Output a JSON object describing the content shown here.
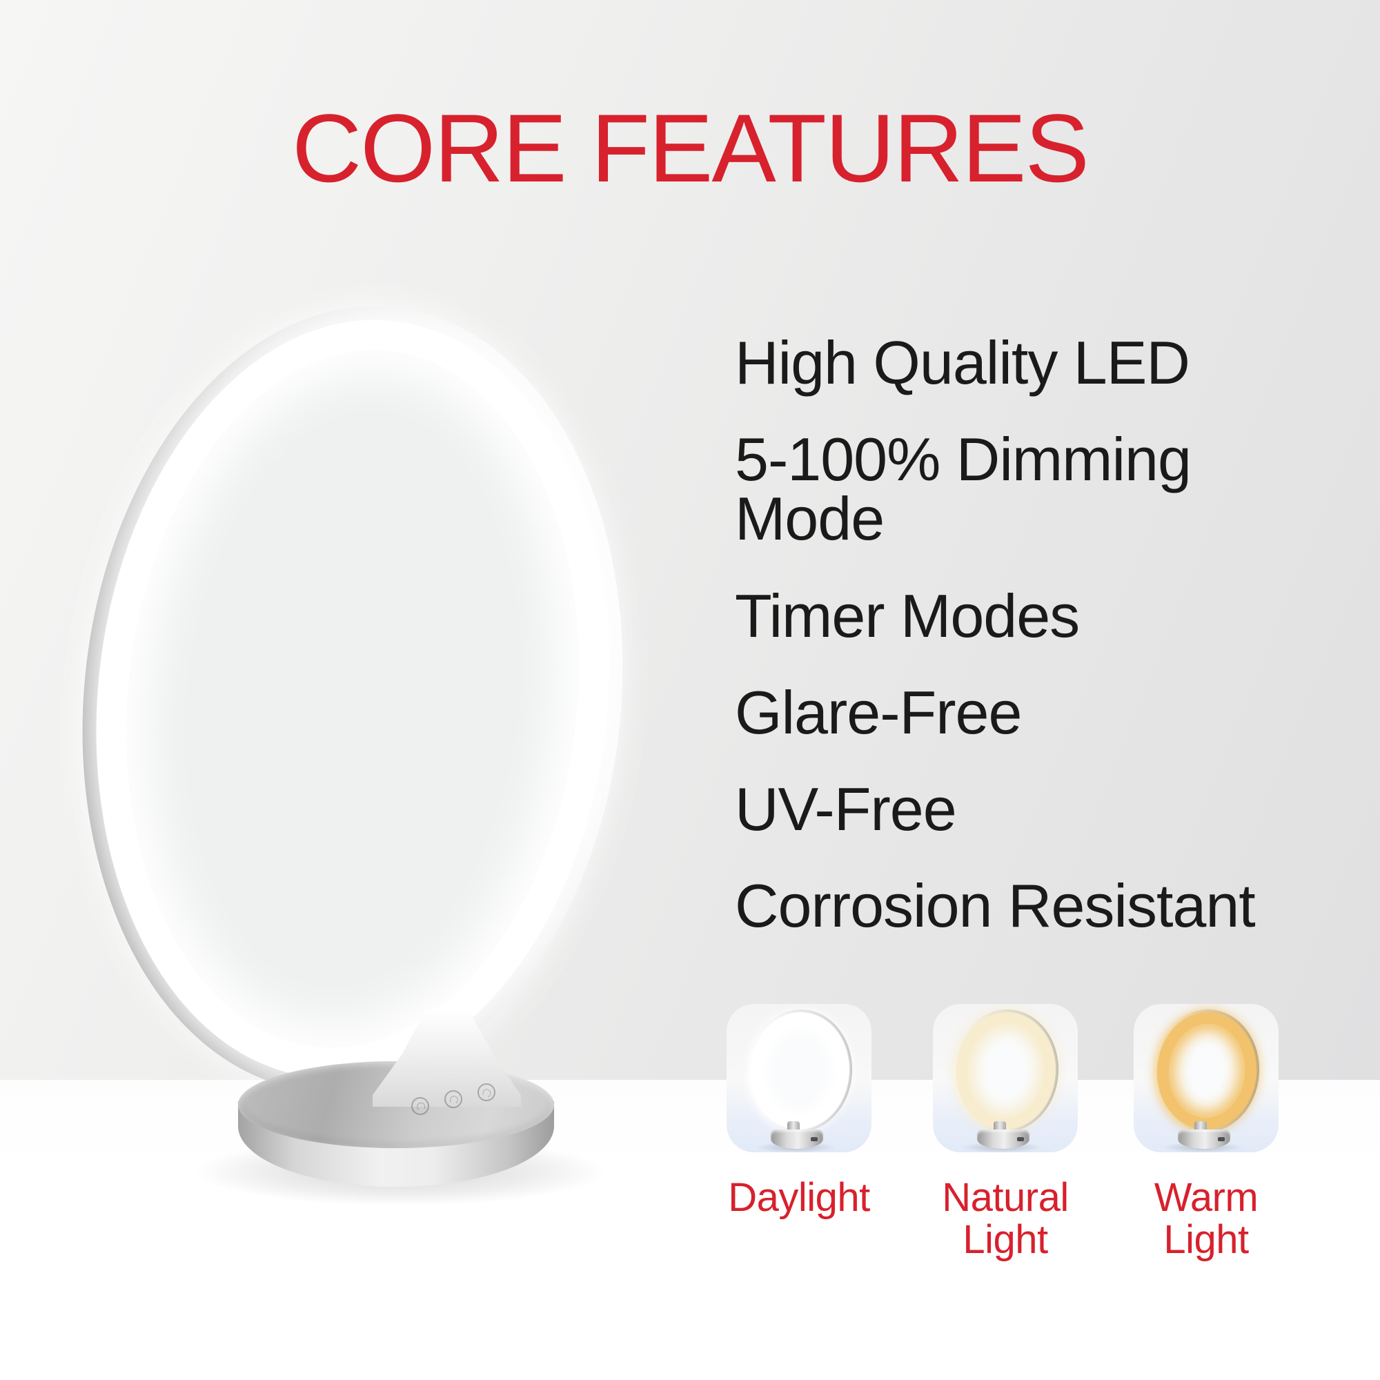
{
  "page": {
    "title": "CORE FEATURES"
  },
  "features": {
    "items": [
      "High Quality LED",
      "5-100% Dimming Mode",
      "Timer Modes",
      "Glare-Free",
      "UV-Free",
      "Corrosion Resistant"
    ]
  },
  "light_modes": {
    "items": [
      {
        "label": "Daylight",
        "glow_color": "#ffffff"
      },
      {
        "label": "Natural Light",
        "glow_color": "#f7ecce"
      },
      {
        "label": "Warm Light",
        "glow_color": "#f2c36c"
      }
    ]
  },
  "product": {
    "base_button_icons": [
      "power-icon",
      "brightness-icon",
      "timer-icon"
    ]
  },
  "colors": {
    "accent_red": "#d7212d",
    "text_black": "#1a1a1a",
    "background_gray": "#ebebeb",
    "floor_white": "#ffffff",
    "metal_silver": "#c0c0c0"
  }
}
